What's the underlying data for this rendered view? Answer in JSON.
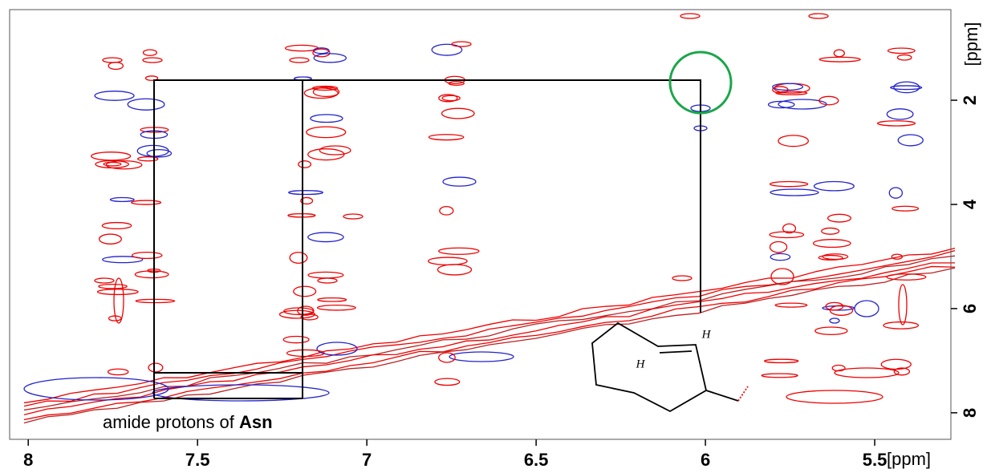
{
  "chart_data": {
    "type": "contour",
    "xlabel": "[ppm]",
    "ylabel": "[ppm]",
    "xlim": [
      8.055,
      5.275
    ],
    "ylim": [
      0.26,
      8.51
    ],
    "xticks": [
      8,
      7.5,
      7,
      6.5,
      6,
      5.5
    ],
    "yticks": [
      2,
      4,
      6,
      8
    ],
    "annotation": "amide protons of ",
    "annotation_bold": "Asn",
    "structure_labels": [
      "H",
      "H"
    ]
  }
}
